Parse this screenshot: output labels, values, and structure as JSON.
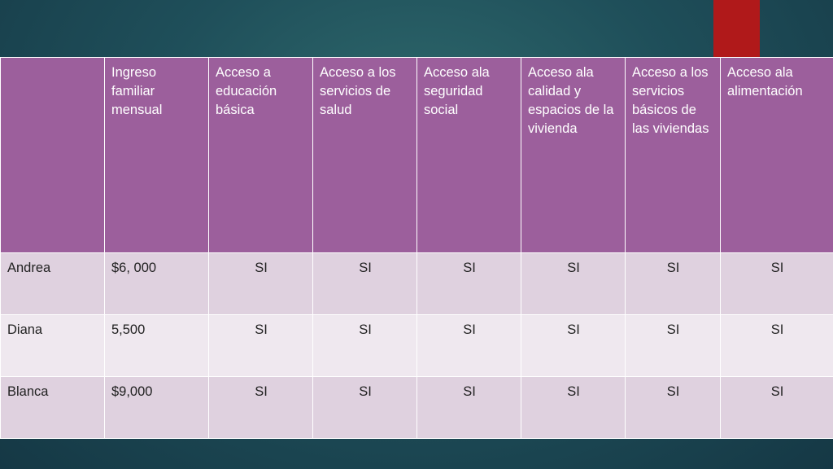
{
  "colors": {
    "header_bg": "#9c5f9c",
    "row_dark": "#dfd1df",
    "row_light": "#efe8ef",
    "accent": "#b0191a",
    "background": "#1f4f5a"
  },
  "table": {
    "headers": [
      "",
      "Ingreso familiar mensual",
      "Acceso a educación básica",
      "Acceso a los servicios de salud",
      "Acceso ala seguridad social",
      "Acceso ala calidad y espacios de la vivienda",
      "Acceso a los servicios básicos de las viviendas",
      "Acceso ala alimentación"
    ],
    "rows": [
      [
        "Andrea",
        "$6, 000",
        "SI",
        "SI",
        "SI",
        "SI",
        "SI",
        "SI"
      ],
      [
        "Diana",
        "5,500",
        "SI",
        "SI",
        "SI",
        "SI",
        "SI",
        "SI"
      ],
      [
        "Blanca",
        "$9,000",
        "SI",
        "SI",
        "SI",
        "SI",
        "SI",
        "SI"
      ]
    ]
  }
}
